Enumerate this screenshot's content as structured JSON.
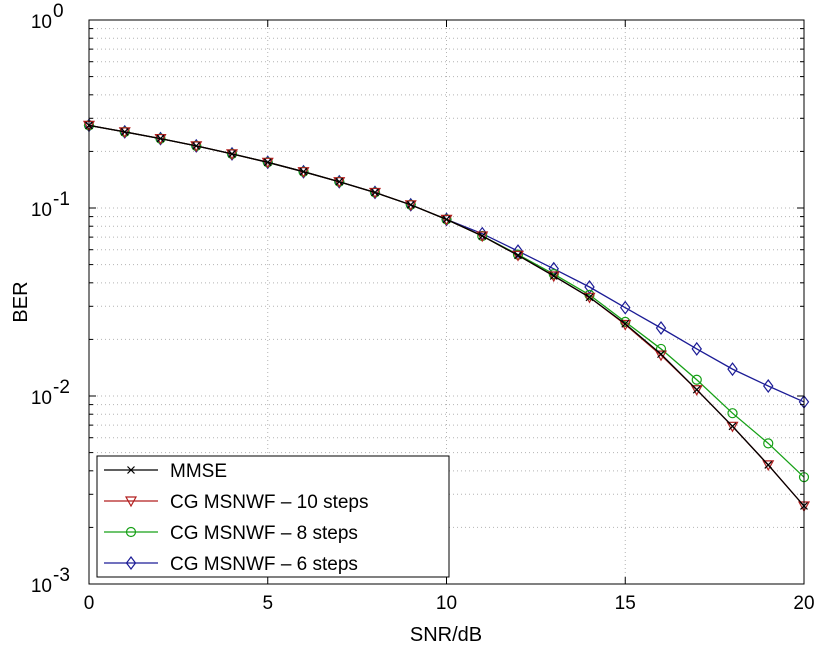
{
  "chart_data": {
    "type": "line",
    "xlabel": "SNR/dB",
    "ylabel": "BER",
    "yscale": "log",
    "xlim": [
      0,
      20
    ],
    "ylim": [
      0.001,
      1
    ],
    "grid": true,
    "legend_position": "bottom-left",
    "x_ticks": [
      "0",
      "5",
      "10",
      "15",
      "20"
    ],
    "y_ticks": [
      {
        "base": "10",
        "exp": "-3"
      },
      {
        "base": "10",
        "exp": "-2"
      },
      {
        "base": "10",
        "exp": "-1"
      },
      {
        "base": "10",
        "exp": "0"
      }
    ],
    "x": [
      0,
      1,
      2,
      3,
      4,
      5,
      6,
      7,
      8,
      9,
      10,
      11,
      12,
      13,
      14,
      15,
      16,
      17,
      18,
      19,
      20
    ],
    "series": [
      {
        "name": "MMSE",
        "color": "#000000",
        "marker": "x",
        "values": [
          0.275,
          0.254,
          0.234,
          0.214,
          0.194,
          0.175,
          0.156,
          0.138,
          0.121,
          0.104,
          0.087,
          0.071,
          0.056,
          0.0435,
          0.0335,
          0.0242,
          0.0167,
          0.0108,
          0.0069,
          0.0043,
          0.0026
        ]
      },
      {
        "name": "CG MSNWF – 10 steps",
        "color": "#b21f1f",
        "marker": "triangle-down",
        "values": [
          0.275,
          0.254,
          0.234,
          0.214,
          0.194,
          0.175,
          0.156,
          0.138,
          0.121,
          0.104,
          0.087,
          0.071,
          0.056,
          0.0435,
          0.0335,
          0.024,
          0.0165,
          0.0108,
          0.0069,
          0.0043,
          0.0026
        ]
      },
      {
        "name": "CG MSNWF – 8 steps",
        "color": "#16a016",
        "marker": "circle",
        "values": [
          0.275,
          0.254,
          0.234,
          0.214,
          0.194,
          0.175,
          0.156,
          0.138,
          0.121,
          0.104,
          0.087,
          0.071,
          0.0565,
          0.0445,
          0.0345,
          0.0248,
          0.0178,
          0.0122,
          0.0081,
          0.0056,
          0.0037
        ]
      },
      {
        "name": "CG MSNWF – 6 steps",
        "color": "#1c1c96",
        "marker": "diamond",
        "values": [
          0.275,
          0.254,
          0.234,
          0.214,
          0.194,
          0.175,
          0.156,
          0.138,
          0.121,
          0.104,
          0.087,
          0.073,
          0.059,
          0.0475,
          0.038,
          0.0295,
          0.023,
          0.0178,
          0.0139,
          0.0113,
          0.0093
        ]
      }
    ]
  }
}
